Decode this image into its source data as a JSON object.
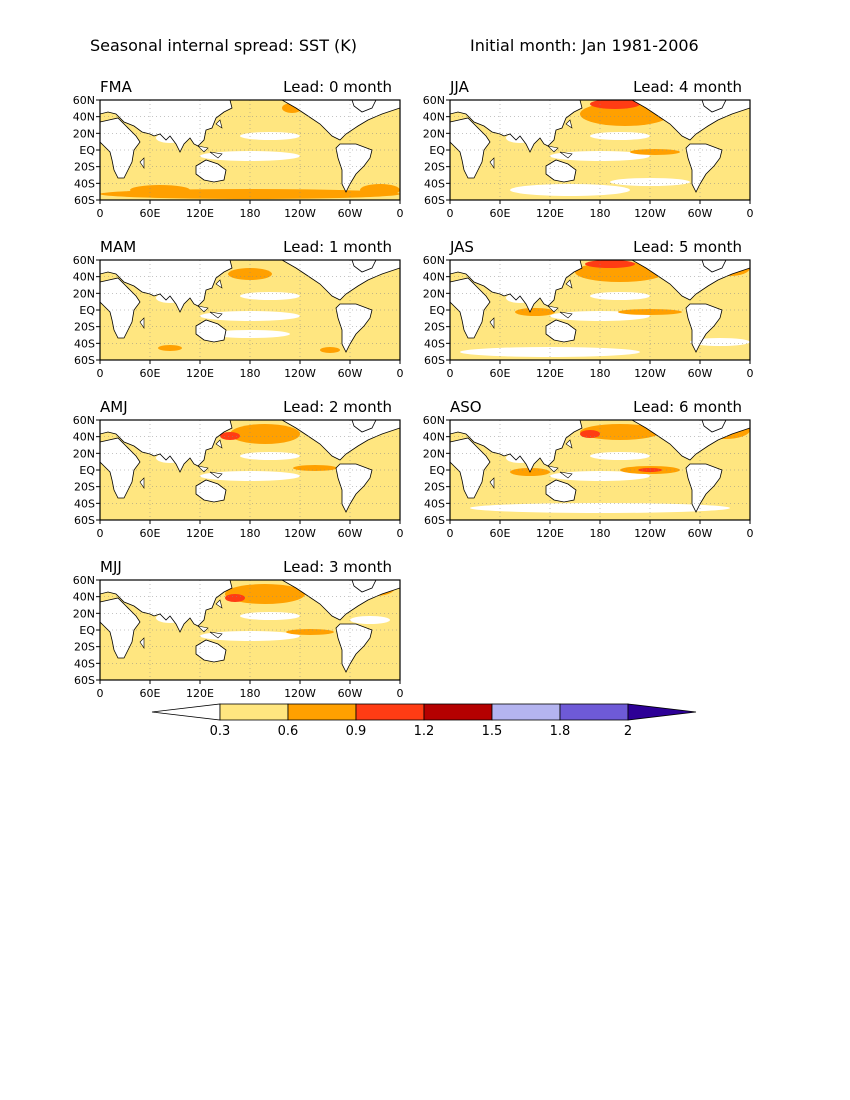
{
  "header": {
    "title_left": "Seasonal internal spread: SST (K)",
    "title_right": "Initial month: Jan 1981-2006"
  },
  "axes": {
    "lat_labels": [
      "60N",
      "40N",
      "20N",
      "EQ",
      "20S",
      "40S",
      "60S"
    ],
    "lon_labels": [
      "0",
      "60E",
      "120E",
      "180",
      "120W",
      "60W",
      "0"
    ]
  },
  "panels": [
    {
      "season": "FMA",
      "lead": "Lead: 0 month"
    },
    {
      "season": "JJA",
      "lead": "Lead: 4 month"
    },
    {
      "season": "MAM",
      "lead": "Lead: 1 month"
    },
    {
      "season": "JAS",
      "lead": "Lead: 5 month"
    },
    {
      "season": "AMJ",
      "lead": "Lead: 2 month"
    },
    {
      "season": "ASO",
      "lead": "Lead: 6 month"
    },
    {
      "season": "MJJ",
      "lead": "Lead: 3 month"
    }
  ],
  "colorbar": {
    "labels": [
      "0.3",
      "0.6",
      "0.9",
      "1.2",
      "1.5",
      "1.8",
      "2"
    ],
    "colors": [
      "#ffffff",
      "#ffe680",
      "#ffa000",
      "#ff3c14",
      "#b40000",
      "#b4b4f0",
      "#6e5ad7",
      "#2d0096"
    ]
  },
  "map_colors": {
    "land": "#ffffff",
    "ocean_low": "#ffffff",
    "level1": "#ffe680",
    "level2": "#ffa000",
    "level3": "#ff3c14"
  }
}
